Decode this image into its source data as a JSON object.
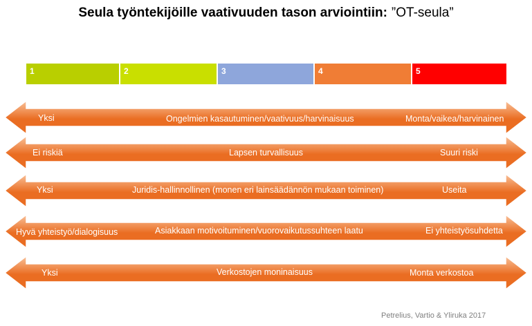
{
  "title": {
    "main": "Seula työntekijöille vaativuuden tason arviointiin:",
    "sub": "”OT-seula”"
  },
  "scale": [
    {
      "label": "1",
      "color": "#b9cf00"
    },
    {
      "label": "2",
      "color": "#c9df00"
    },
    {
      "label": "3",
      "color": "#8ea6db"
    },
    {
      "label": "4",
      "color": "#f07d35"
    },
    {
      "label": "5",
      "color": "#ff0000"
    }
  ],
  "arrows": [
    {
      "left": "Yksi",
      "center": "Ongelmien kasautuminen/vaativuus/harvinaisuus",
      "right": "Monta/vaikea/harvinainen"
    },
    {
      "left": "Ei riskiä",
      "center": "Lapsen turvallisuus",
      "right": "Suuri riski"
    },
    {
      "left": "Yksi",
      "center": "Juridis-hallinnollinen (monen eri lainsäädännön mukaan toiminen)",
      "right": "Useita"
    },
    {
      "left": "Hyvä yhteistyö/dialogisuus",
      "center": "Asiakkaan motivoituminen/vuorovaikutussuhteen laatu",
      "right": "Ei yhteistyösuhdetta"
    },
    {
      "left": "Yksi",
      "center": "Verkostojen moninaisuus",
      "right": "Monta verkostoa"
    }
  ],
  "credit": "Petrelius, Vartio & Yliruka 2017",
  "colors": {
    "arrow_light": "#f9c29b",
    "arrow_dark": "#ea6d22",
    "arrow_border": "#ffffff"
  }
}
